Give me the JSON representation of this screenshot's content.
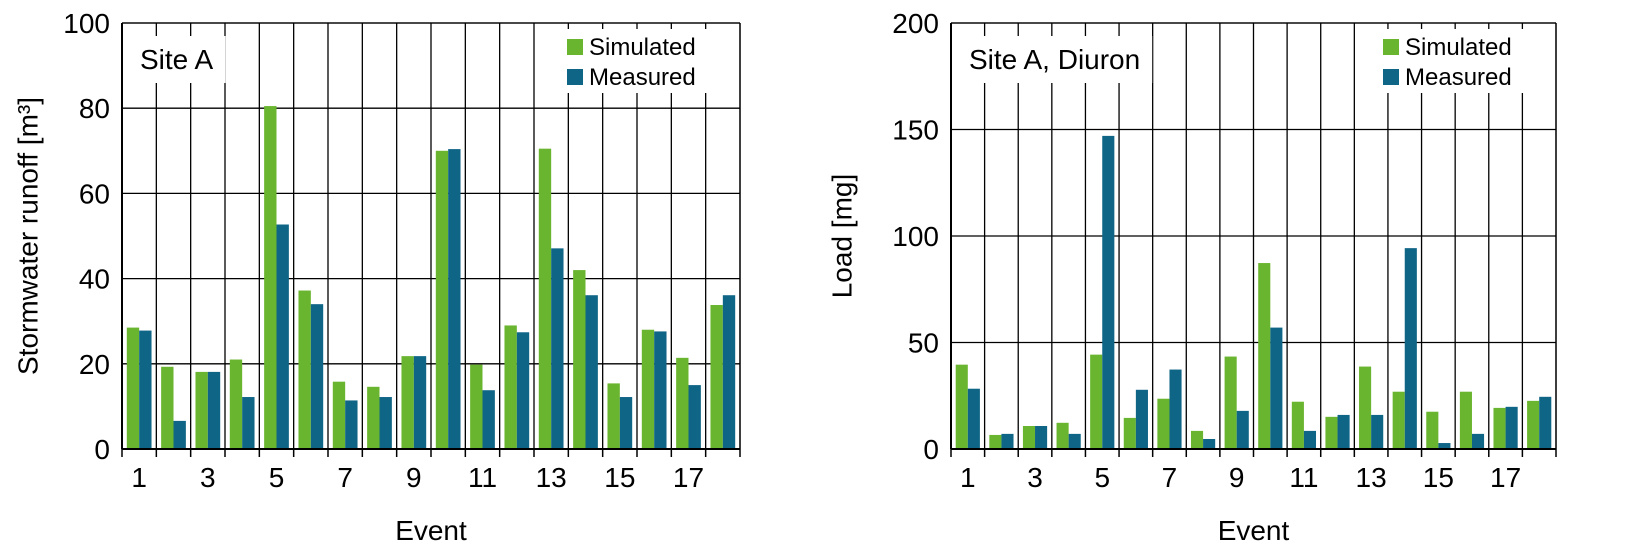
{
  "chart_data": [
    {
      "type": "bar",
      "title": "Site A",
      "xlabel": "Event",
      "ylabel": "Stormwater runoff [m³]",
      "ylim": [
        0,
        100
      ],
      "yticks": [
        "0",
        "20",
        "40",
        "60",
        "80",
        "100"
      ],
      "xticks": [
        "1",
        "3",
        "5",
        "7",
        "9",
        "11",
        "13",
        "15",
        "17"
      ],
      "categories": [
        "1",
        "2",
        "3",
        "4",
        "5",
        "6",
        "7",
        "8",
        "9",
        "10",
        "11",
        "12",
        "13",
        "14",
        "15",
        "16",
        "17",
        "18"
      ],
      "grid": true,
      "legend_position": "top-right",
      "series": [
        {
          "name": "Simulated",
          "color": "#6ab52f",
          "values": [
            28.5,
            19.3,
            18.1,
            21.0,
            80.5,
            37.2,
            15.8,
            14.6,
            21.8,
            70.0,
            19.8,
            29.0,
            70.5,
            42.0,
            15.4,
            28.0,
            21.4,
            33.8
          ]
        },
        {
          "name": "Measured",
          "color": "#0f6586",
          "values": [
            27.8,
            6.6,
            18.1,
            12.2,
            52.7,
            34.0,
            11.4,
            12.2,
            21.8,
            70.4,
            13.8,
            27.4,
            47.1,
            36.1,
            12.2,
            27.6,
            15.0,
            36.1
          ]
        }
      ]
    },
    {
      "type": "bar",
      "title": "Site A, Diuron",
      "xlabel": "Event",
      "ylabel": "Load [mg]",
      "ylim": [
        0,
        200
      ],
      "yticks": [
        "0",
        "50",
        "100",
        "150",
        "200"
      ],
      "xticks": [
        "1",
        "3",
        "5",
        "7",
        "9",
        "11",
        "13",
        "15",
        "17"
      ],
      "categories": [
        "1",
        "2",
        "3",
        "4",
        "5",
        "6",
        "7",
        "8",
        "9",
        "10",
        "11",
        "12",
        "13",
        "14",
        "15",
        "16",
        "17",
        "18"
      ],
      "grid": true,
      "legend_position": "top-right",
      "series": [
        {
          "name": "Simulated",
          "color": "#6ab52f",
          "values": [
            39.6,
            6.6,
            10.8,
            12.3,
            44.3,
            14.6,
            23.6,
            8.5,
            43.4,
            87.3,
            22.2,
            15.1,
            38.7,
            26.9,
            17.5,
            26.9,
            19.3,
            22.6
          ]
        },
        {
          "name": "Measured",
          "color": "#0f6586",
          "values": [
            28.3,
            7.1,
            10.8,
            7.1,
            147.0,
            27.8,
            37.3,
            4.7,
            17.9,
            57.0,
            8.5,
            16.0,
            16.0,
            94.3,
            2.8,
            7.1,
            19.8,
            24.5
          ]
        }
      ]
    }
  ]
}
